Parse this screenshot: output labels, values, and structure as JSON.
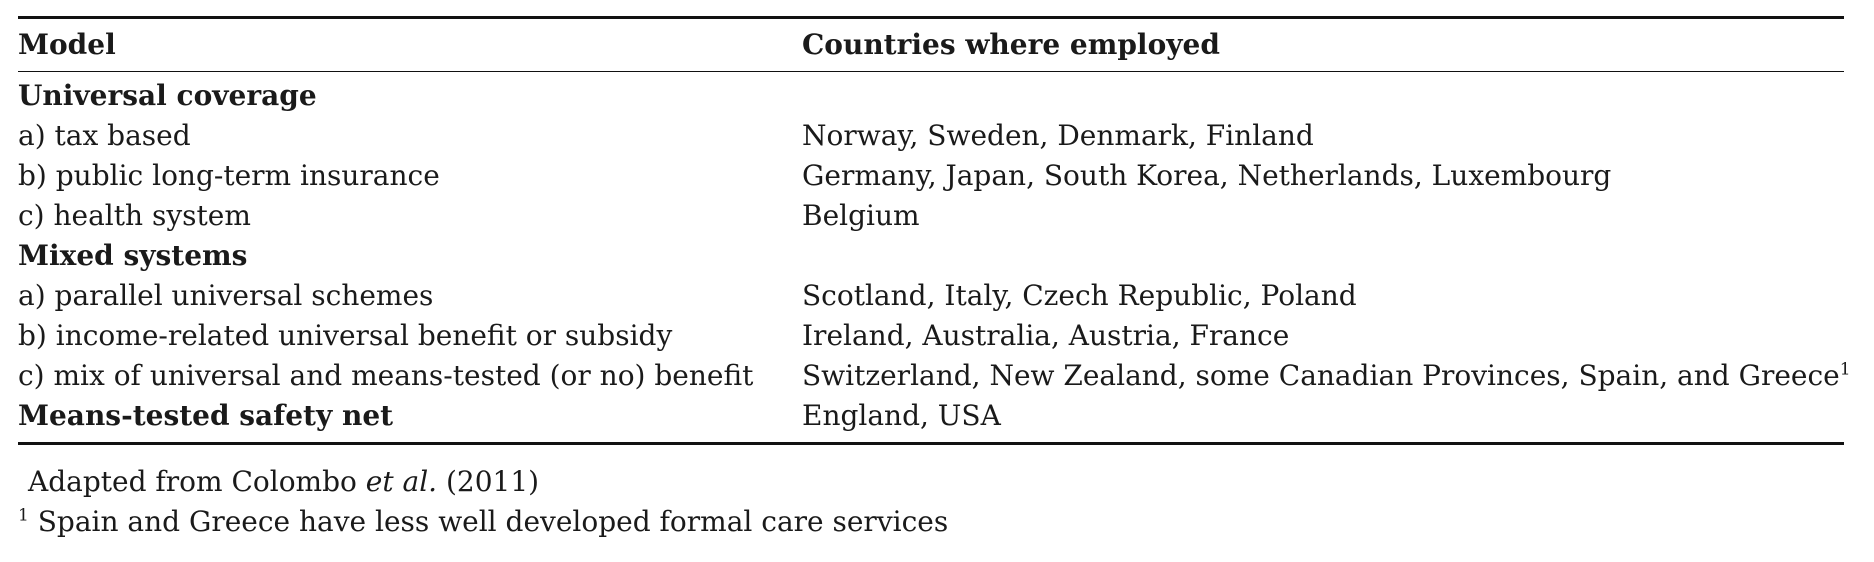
{
  "table": {
    "headers": {
      "model": "Model",
      "countries": "Countries where employed"
    },
    "rows": [
      {
        "model": "Universal coverage",
        "countries": "",
        "section": true
      },
      {
        "model": "a) tax based",
        "countries": "Norway, Sweden, Denmark, Finland"
      },
      {
        "model": "b) public long-term insurance",
        "countries": "Germany, Japan, South Korea, Netherlands, Luxembourg"
      },
      {
        "model": "c) health system",
        "countries": "Belgium"
      },
      {
        "model": "Mixed systems",
        "countries": "",
        "section": true
      },
      {
        "model": "a) parallel universal schemes",
        "countries": "Scotland, Italy, Czech Republic, Poland"
      },
      {
        "model": "b) income-related universal benefit or subsidy",
        "countries": "Ireland, Australia, Austria, France"
      },
      {
        "model": "c) mix of universal and means-tested (or no) benefit",
        "countries": "Switzerland, New Zealand, some Canadian Provinces, Spain, and Greece",
        "footnote_mark": "1"
      },
      {
        "model": "Means-tested safety net",
        "countries": "England, USA",
        "section": true
      }
    ]
  },
  "footer": {
    "source_prefix": "Adapted from Colombo ",
    "source_italic": "et al.",
    "source_suffix": " (2011)",
    "footnote_mark": "1",
    "footnote_text": " Spain and Greece have less well developed formal care services"
  }
}
